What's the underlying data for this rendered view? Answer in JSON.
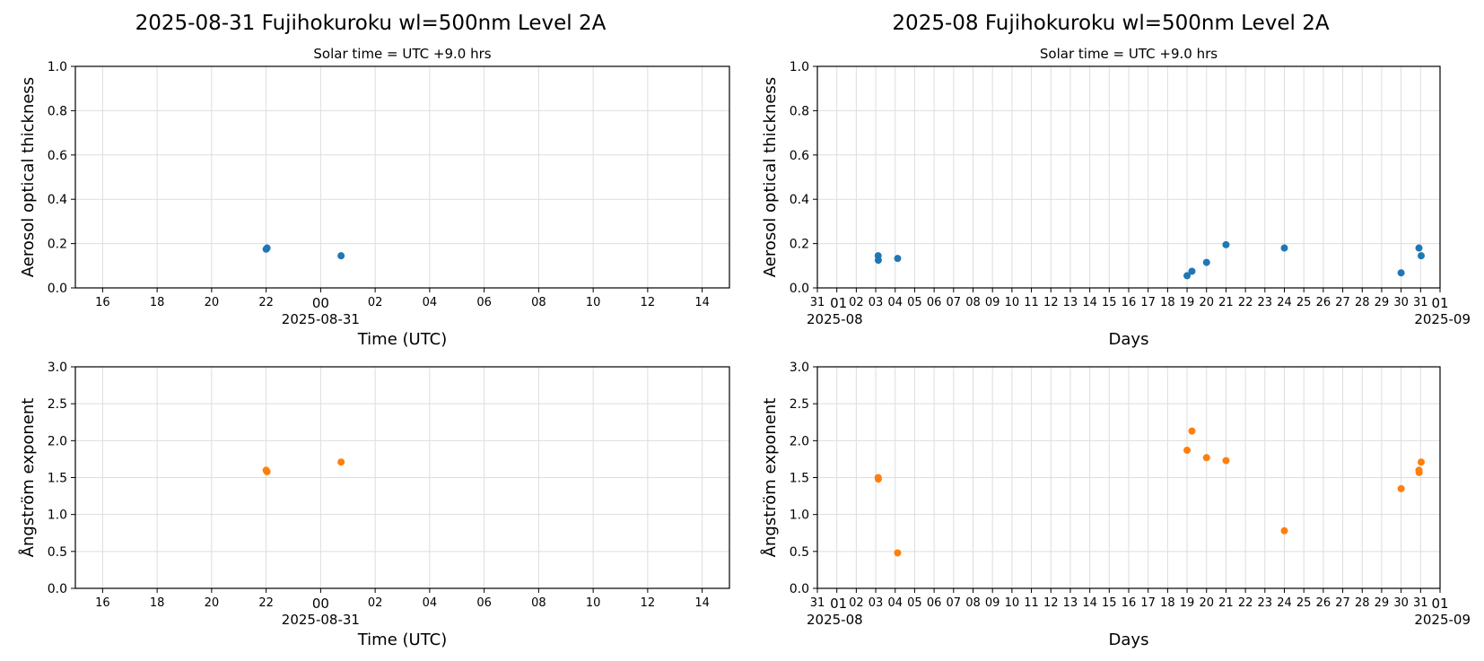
{
  "figure": {
    "left_title": "2025-08-31  Fujihokuroku  wl=500nm  Level 2A",
    "right_title": "2025-08  Fujihokuroku  wl=500nm  Level 2A"
  },
  "colors": {
    "aot": "#1f77b4",
    "angstrom": "#ff7f0e",
    "grid": "#dddddd"
  },
  "chart_data": [
    {
      "id": "daily-aot",
      "type": "scatter",
      "subtitle": "Solar time = UTC +9.0 hrs",
      "xlabel": "Time (UTC)",
      "ylabel": "Aerosol optical thickness",
      "ylim": [
        0,
        1.0
      ],
      "yticks": [
        "0.0",
        "0.2",
        "0.4",
        "0.6",
        "0.8",
        "1.0"
      ],
      "xlim": [
        "2025-08-30T15:00",
        "2025-08-31T15:00"
      ],
      "xticks": [
        "16",
        "18",
        "20",
        "22",
        "00",
        "02",
        "04",
        "06",
        "08",
        "10",
        "12",
        "14"
      ],
      "xtick_major": "00",
      "xtick_date": "2025-08-31",
      "grid": true,
      "series": [
        {
          "points": [
            {
              "x": "2025-08-30T22:00",
              "y": 0.175
            },
            {
              "x": "2025-08-30T22:02",
              "y": 0.18
            },
            {
              "x": "2025-08-31T00:45",
              "y": 0.145
            }
          ]
        }
      ]
    },
    {
      "id": "monthly-aot",
      "type": "scatter",
      "subtitle": "Solar time = UTC +9.0 hrs",
      "xlabel": "Days",
      "ylabel": "Aerosol optical thickness",
      "ylim": [
        0,
        1.0
      ],
      "yticks": [
        "0.0",
        "0.2",
        "0.4",
        "0.6",
        "0.8",
        "1.0"
      ],
      "xlim": [
        "2025-07-31",
        "2025-09-01"
      ],
      "xticks": [
        "31",
        "01",
        "02",
        "03",
        "04",
        "05",
        "06",
        "07",
        "08",
        "09",
        "10",
        "11",
        "12",
        "13",
        "14",
        "15",
        "16",
        "17",
        "18",
        "19",
        "20",
        "21",
        "22",
        "23",
        "24",
        "25",
        "26",
        "27",
        "28",
        "29",
        "30",
        "31",
        "01"
      ],
      "xtick_start_label": "2025-08",
      "xtick_end_label": "2025-09",
      "grid": true,
      "series": [
        {
          "points": [
            {
              "x": "2025-08-03T03:00",
              "y": 0.145
            },
            {
              "x": "2025-08-03T03:10",
              "y": 0.125
            },
            {
              "x": "2025-08-04T03:00",
              "y": 0.133
            },
            {
              "x": "2025-08-19T00:00",
              "y": 0.055
            },
            {
              "x": "2025-08-19T06:00",
              "y": 0.075
            },
            {
              "x": "2025-08-20T00:00",
              "y": 0.115
            },
            {
              "x": "2025-08-21T00:00",
              "y": 0.195
            },
            {
              "x": "2025-08-24T00:00",
              "y": 0.18
            },
            {
              "x": "2025-08-30T00:00",
              "y": 0.068
            },
            {
              "x": "2025-08-30T22:00",
              "y": 0.18
            },
            {
              "x": "2025-08-31T00:45",
              "y": 0.145
            }
          ]
        }
      ]
    },
    {
      "id": "daily-angstrom",
      "type": "scatter",
      "xlabel": "Time (UTC)",
      "ylabel": "Ångström exponent",
      "ylim": [
        0,
        3.0
      ],
      "yticks": [
        "0.0",
        "0.5",
        "1.0",
        "1.5",
        "2.0",
        "2.5",
        "3.0"
      ],
      "xlim": [
        "2025-08-30T15:00",
        "2025-08-31T15:00"
      ],
      "xticks": [
        "16",
        "18",
        "20",
        "22",
        "00",
        "02",
        "04",
        "06",
        "08",
        "10",
        "12",
        "14"
      ],
      "xtick_major": "00",
      "xtick_date": "2025-08-31",
      "grid": true,
      "series": [
        {
          "points": [
            {
              "x": "2025-08-30T22:00",
              "y": 1.6
            },
            {
              "x": "2025-08-30T22:02",
              "y": 1.58
            },
            {
              "x": "2025-08-31T00:45",
              "y": 1.71
            }
          ]
        }
      ]
    },
    {
      "id": "monthly-angstrom",
      "type": "scatter",
      "xlabel": "Days",
      "ylabel": "Ångström exponent",
      "ylim": [
        0,
        3.0
      ],
      "yticks": [
        "0.0",
        "0.5",
        "1.0",
        "1.5",
        "2.0",
        "2.5",
        "3.0"
      ],
      "xlim": [
        "2025-07-31",
        "2025-09-01"
      ],
      "xticks": [
        "31",
        "01",
        "02",
        "03",
        "04",
        "05",
        "06",
        "07",
        "08",
        "09",
        "10",
        "11",
        "12",
        "13",
        "14",
        "15",
        "16",
        "17",
        "18",
        "19",
        "20",
        "21",
        "22",
        "23",
        "24",
        "25",
        "26",
        "27",
        "28",
        "29",
        "30",
        "31",
        "01"
      ],
      "xtick_start_label": "2025-08",
      "xtick_end_label": "2025-09",
      "grid": true,
      "series": [
        {
          "points": [
            {
              "x": "2025-08-03T03:00",
              "y": 1.5
            },
            {
              "x": "2025-08-03T03:10",
              "y": 1.48
            },
            {
              "x": "2025-08-04T03:00",
              "y": 0.48
            },
            {
              "x": "2025-08-19T00:00",
              "y": 1.87
            },
            {
              "x": "2025-08-19T06:00",
              "y": 2.13
            },
            {
              "x": "2025-08-20T00:00",
              "y": 1.77
            },
            {
              "x": "2025-08-21T00:00",
              "y": 1.73
            },
            {
              "x": "2025-08-24T00:00",
              "y": 0.78
            },
            {
              "x": "2025-08-30T00:00",
              "y": 1.35
            },
            {
              "x": "2025-08-30T22:00",
              "y": 1.6
            },
            {
              "x": "2025-08-30T22:10",
              "y": 1.57
            },
            {
              "x": "2025-08-31T00:45",
              "y": 1.71
            }
          ]
        }
      ]
    }
  ]
}
